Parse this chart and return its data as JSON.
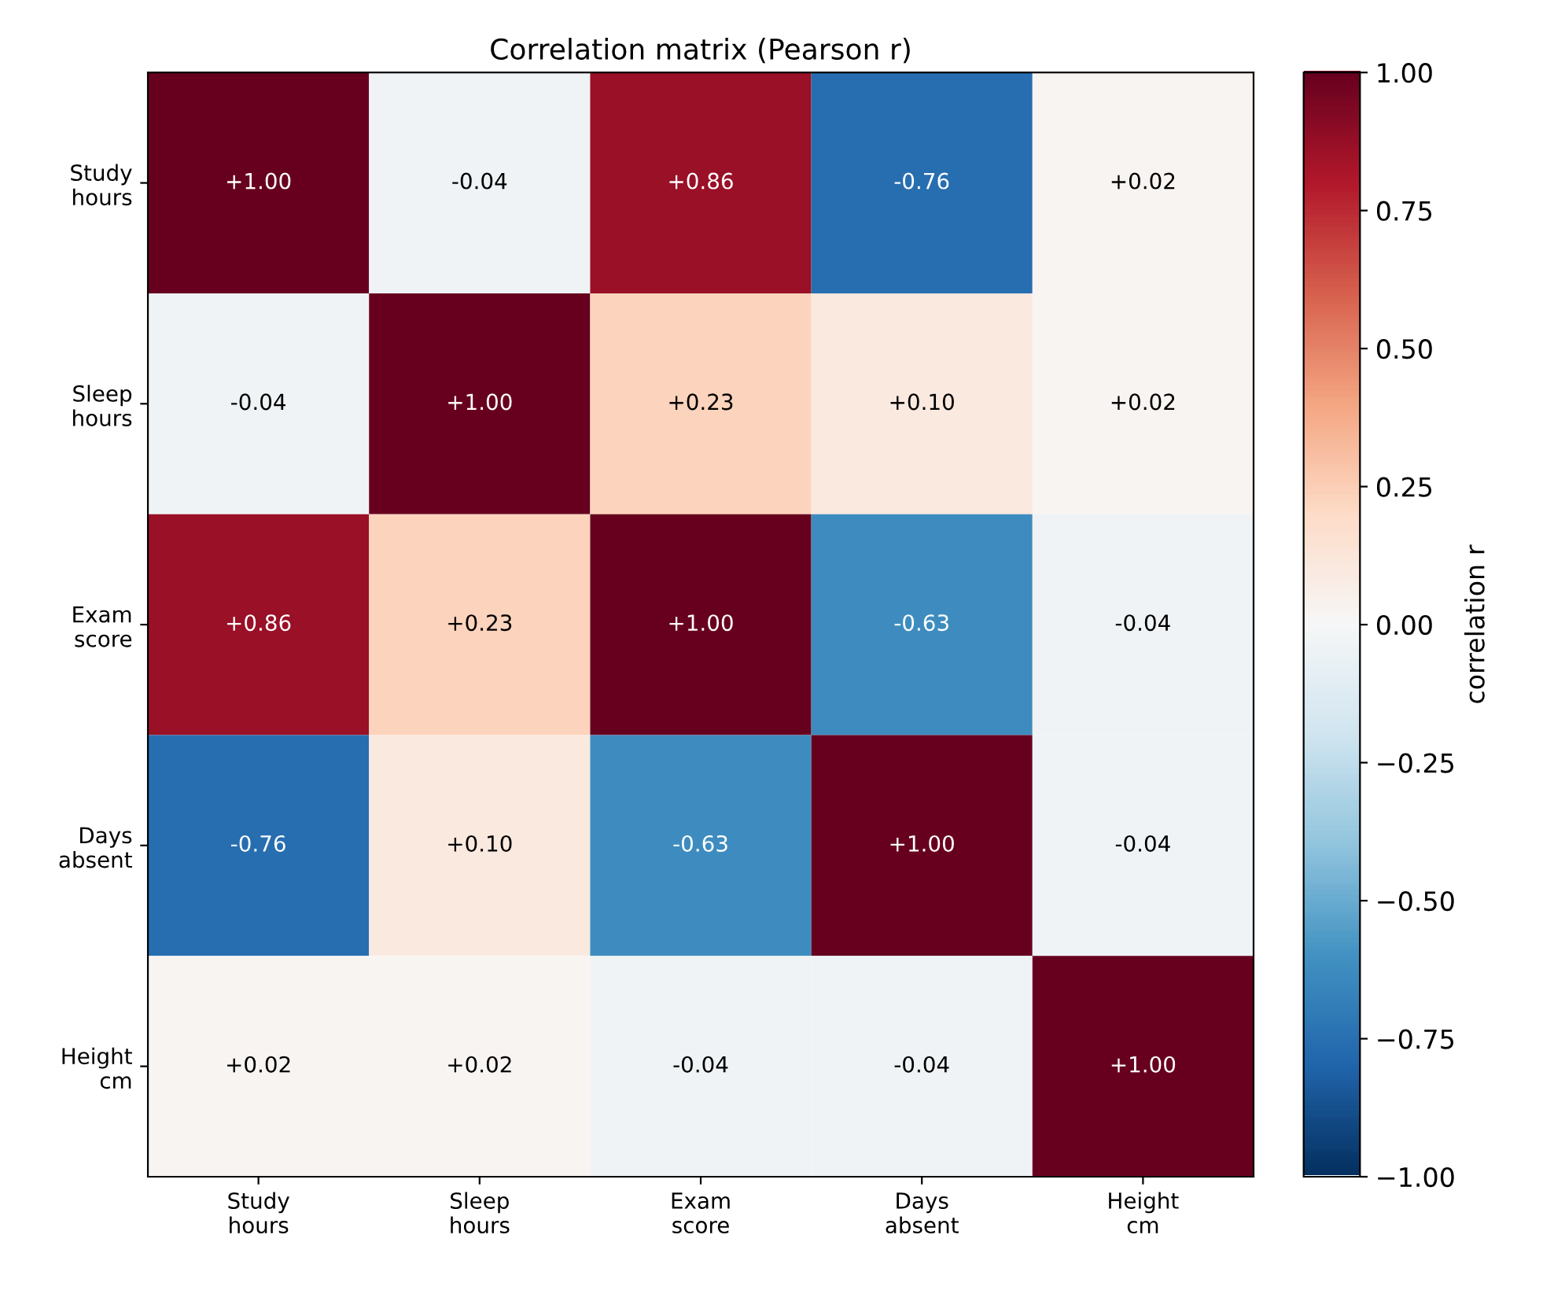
{
  "chart_data": {
    "type": "heatmap",
    "title": "Correlation matrix (Pearson r)",
    "clabel": "correlation r",
    "categories": [
      "Study\nhours",
      "Sleep\nhours",
      "Exam\nscore",
      "Days\nabsent",
      "Height\ncm"
    ],
    "y_categories": [
      "Study\nhours",
      "Sleep\nhours",
      "Exam\nscore",
      "Days\nabsent",
      "Height\ncm"
    ],
    "cells": [
      [
        1.0,
        -0.04,
        0.86,
        -0.76,
        0.02
      ],
      [
        -0.04,
        1.0,
        0.23,
        0.1,
        0.02
      ],
      [
        0.86,
        0.23,
        1.0,
        -0.63,
        -0.04
      ],
      [
        -0.76,
        0.1,
        -0.63,
        1.0,
        -0.04
      ],
      [
        0.02,
        0.02,
        -0.04,
        -0.04,
        1.0
      ]
    ],
    "cell_labels": [
      [
        "+1.00",
        "-0.04",
        "+0.86",
        "-0.76",
        "+0.02"
      ],
      [
        "-0.04",
        "+1.00",
        "+0.23",
        "+0.10",
        "+0.02"
      ],
      [
        "+0.86",
        "+0.23",
        "+1.00",
        "-0.63",
        "-0.04"
      ],
      [
        "-0.76",
        "+0.10",
        "-0.63",
        "+1.00",
        "-0.04"
      ],
      [
        "+0.02",
        "+0.02",
        "-0.04",
        "-0.04",
        "+1.00"
      ]
    ],
    "clim": [
      -1.0,
      1.0
    ],
    "cticks": [
      {
        "value": -1.0,
        "label": "−1.00"
      },
      {
        "value": -0.75,
        "label": "−0.75"
      },
      {
        "value": -0.5,
        "label": "−0.50"
      },
      {
        "value": -0.25,
        "label": "−0.25"
      },
      {
        "value": 0.0,
        "label": "0.00"
      },
      {
        "value": 0.25,
        "label": "0.25"
      },
      {
        "value": 0.5,
        "label": "0.50"
      },
      {
        "value": 0.75,
        "label": "0.75"
      },
      {
        "value": 1.0,
        "label": "1.00"
      }
    ]
  }
}
